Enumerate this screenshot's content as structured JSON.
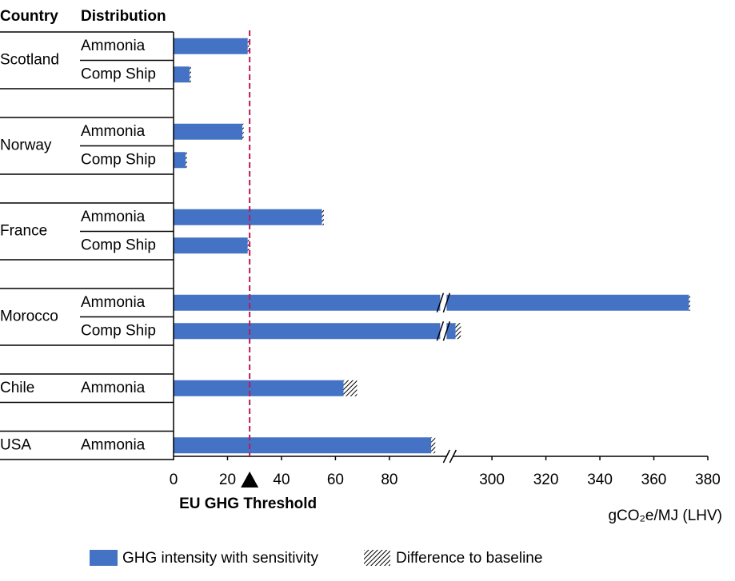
{
  "chart_data": {
    "type": "bar",
    "column_headers": [
      "Country",
      "Distribution"
    ],
    "groups": [
      {
        "country": "Scotland",
        "rows": [
          {
            "distribution": "Ammonia",
            "value": 27.5,
            "diff": 0.5
          },
          {
            "distribution": "Comp Ship",
            "value": 6,
            "diff": 0.5
          }
        ]
      },
      {
        "country": "Norway",
        "rows": [
          {
            "distribution": "Ammonia",
            "value": 25.5,
            "diff": 0.5
          },
          {
            "distribution": "Comp Ship",
            "value": 4.5,
            "diff": 0.5
          }
        ]
      },
      {
        "country": "France",
        "rows": [
          {
            "distribution": "Ammonia",
            "value": 55,
            "diff": 0.7
          },
          {
            "distribution": "Comp Ship",
            "value": 27.5,
            "diff": 0.5
          }
        ]
      },
      {
        "country": "Morocco",
        "rows": [
          {
            "distribution": "Ammonia",
            "value": 373,
            "diff": 0.5
          },
          {
            "distribution": "Comp Ship",
            "value": 286.5,
            "diff": 2
          }
        ]
      },
      {
        "country": "Chile",
        "rows": [
          {
            "distribution": "Ammonia",
            "value": 63,
            "diff": 5
          }
        ]
      },
      {
        "country": "USA",
        "rows": [
          {
            "distribution": "Ammonia",
            "value": 95.5,
            "diff": 1.5
          }
        ]
      }
    ],
    "series": [
      {
        "name": "GHG intensity with sensitivity",
        "color": "#4472c4"
      },
      {
        "name": "Difference to baseline",
        "pattern": "hatch"
      }
    ],
    "xlim": [
      0,
      380
    ],
    "xbreak": [
      100,
      282
    ],
    "xticks": [
      0,
      20,
      40,
      60,
      80,
      300,
      320,
      340,
      360,
      380
    ],
    "x_label": "gCO₂e/MJ  (LHV)",
    "threshold": {
      "value": 28.2,
      "label": "EU GHG Threshold",
      "color": "#c0185a"
    },
    "legend": "bottom"
  }
}
